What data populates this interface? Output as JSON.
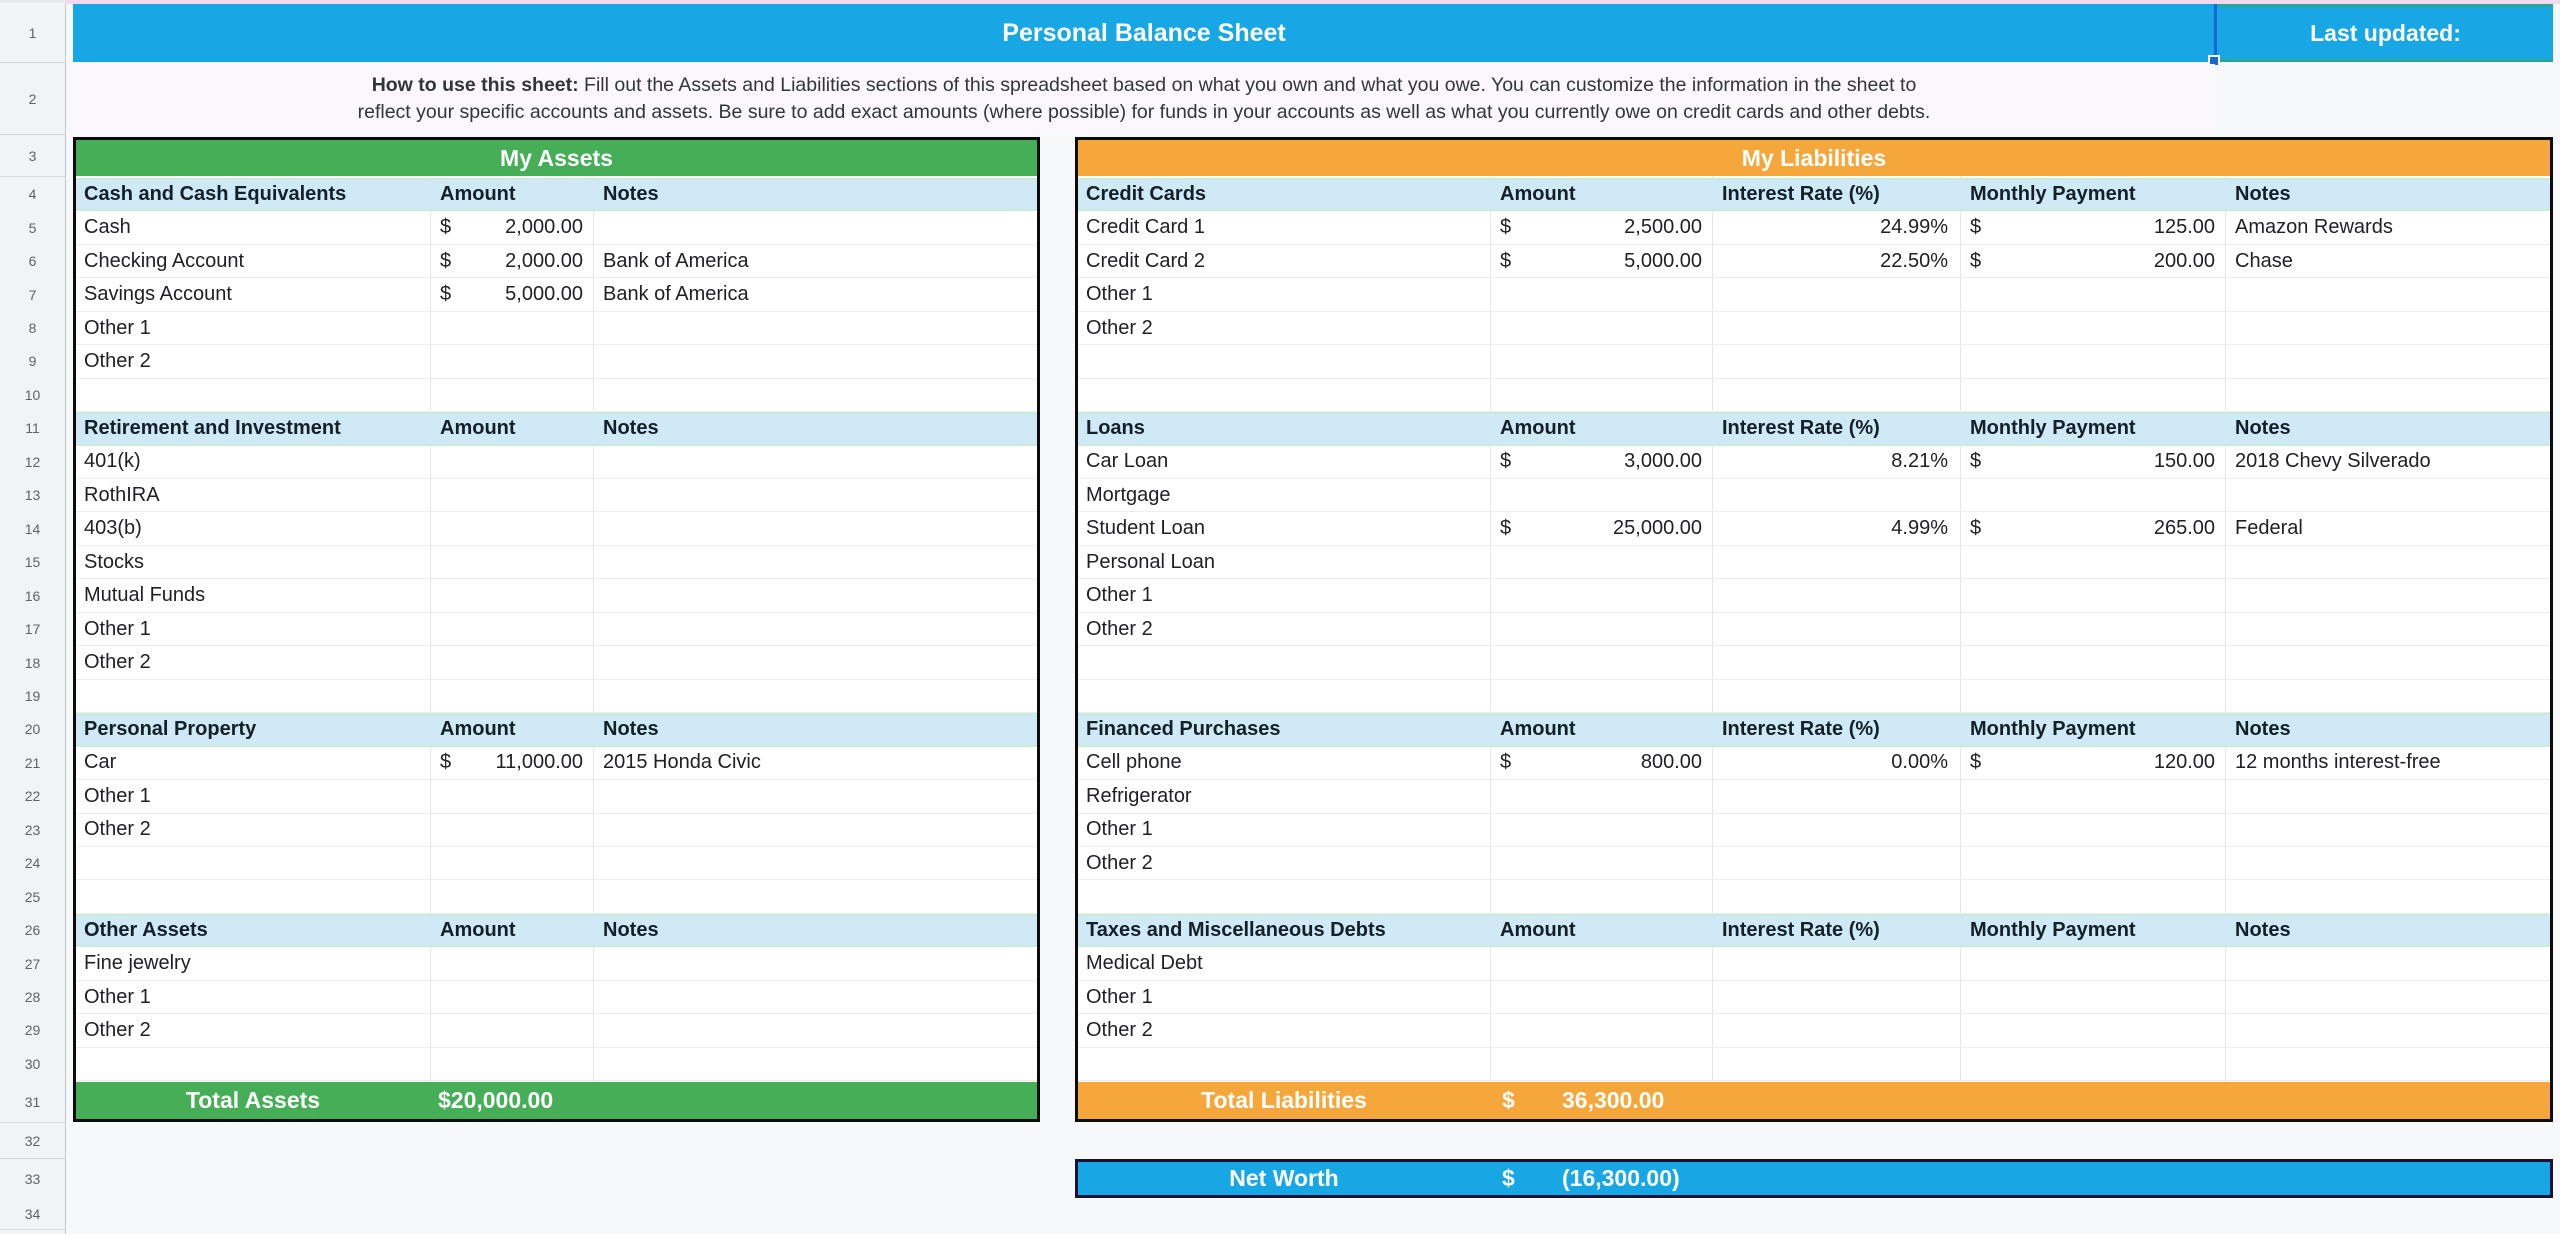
{
  "title_bar": {
    "title": "Personal Balance Sheet",
    "last_updated_label": "Last updated:"
  },
  "instructions": {
    "bold_prefix": "How to use this sheet:",
    "line1_rest": " Fill out the Assets and Liabilities sections of this spreadsheet based on what you own and what you owe. You can customize the information in the sheet to",
    "line2": "reflect your specific accounts and assets. Be sure to add exact amounts (where possible) for funds in your accounts as well as what you currently owe on credit cards and other debts."
  },
  "sheet": {
    "row_count": 34
  },
  "assets": {
    "banner": "My Assets",
    "column_labels": {
      "amount": "Amount",
      "notes": "Notes"
    },
    "rows": [
      {
        "r": 4,
        "type": "header",
        "label": "Cash and Cash Equivalents"
      },
      {
        "r": 5,
        "type": "item",
        "label": "Cash",
        "amount": "2,000.00",
        "notes": ""
      },
      {
        "r": 6,
        "type": "item",
        "label": "Checking Account",
        "amount": "2,000.00",
        "notes": "Bank of America"
      },
      {
        "r": 7,
        "type": "item",
        "label": "Savings Account",
        "amount": "5,000.00",
        "notes": "Bank of America"
      },
      {
        "r": 8,
        "type": "item",
        "label": "Other 1"
      },
      {
        "r": 9,
        "type": "item",
        "label": "Other 2"
      },
      {
        "r": 10,
        "type": "blank"
      },
      {
        "r": 11,
        "type": "header",
        "label": "Retirement and Investment"
      },
      {
        "r": 12,
        "type": "item",
        "label": "401(k)"
      },
      {
        "r": 13,
        "type": "item",
        "label": "RothIRA"
      },
      {
        "r": 14,
        "type": "item",
        "label": "403(b)"
      },
      {
        "r": 15,
        "type": "item",
        "label": "Stocks"
      },
      {
        "r": 16,
        "type": "item",
        "label": "Mutual Funds"
      },
      {
        "r": 17,
        "type": "item",
        "label": "Other 1"
      },
      {
        "r": 18,
        "type": "item",
        "label": "Other 2"
      },
      {
        "r": 19,
        "type": "blank"
      },
      {
        "r": 20,
        "type": "header",
        "label": "Personal Property"
      },
      {
        "r": 21,
        "type": "item",
        "label": "Car",
        "amount": "11,000.00",
        "notes": "2015 Honda Civic"
      },
      {
        "r": 22,
        "type": "item",
        "label": "Other 1"
      },
      {
        "r": 23,
        "type": "item",
        "label": "Other 2"
      },
      {
        "r": 24,
        "type": "blank"
      },
      {
        "r": 25,
        "type": "blank"
      },
      {
        "r": 26,
        "type": "header",
        "label": "Other Assets"
      },
      {
        "r": 27,
        "type": "item",
        "label": "Fine jewelry"
      },
      {
        "r": 28,
        "type": "item",
        "label": "Other 1"
      },
      {
        "r": 29,
        "type": "item",
        "label": "Other 2"
      },
      {
        "r": 30,
        "type": "blank"
      }
    ],
    "total_label": "Total Assets",
    "total_value": "$20,000.00"
  },
  "liabilities": {
    "banner": "My Liabilities",
    "column_labels": {
      "amount": "Amount",
      "rate": "Interest Rate (%)",
      "payment": "Monthly Payment",
      "notes": "Notes"
    },
    "rows": [
      {
        "r": 4,
        "type": "header",
        "label": "Credit Cards"
      },
      {
        "r": 5,
        "type": "item",
        "label": "Credit Card 1",
        "amount": "2,500.00",
        "rate": "24.99%",
        "payment": "125.00",
        "notes": "Amazon Rewards"
      },
      {
        "r": 6,
        "type": "item",
        "label": "Credit Card 2",
        "amount": "5,000.00",
        "rate": "22.50%",
        "payment": "200.00",
        "notes": "Chase"
      },
      {
        "r": 7,
        "type": "item",
        "label": "Other 1"
      },
      {
        "r": 8,
        "type": "item",
        "label": "Other 2"
      },
      {
        "r": 9,
        "type": "blank"
      },
      {
        "r": 10,
        "type": "blank"
      },
      {
        "r": 11,
        "type": "header",
        "label": "Loans"
      },
      {
        "r": 12,
        "type": "item",
        "label": "Car Loan",
        "amount": "3,000.00",
        "rate": "8.21%",
        "payment": "150.00",
        "notes": "2018 Chevy Silverado"
      },
      {
        "r": 13,
        "type": "item",
        "label": "Mortgage"
      },
      {
        "r": 14,
        "type": "item",
        "label": "Student Loan",
        "amount": "25,000.00",
        "rate": "4.99%",
        "payment": "265.00",
        "notes": "Federal"
      },
      {
        "r": 15,
        "type": "item",
        "label": "Personal Loan"
      },
      {
        "r": 16,
        "type": "item",
        "label": "Other 1"
      },
      {
        "r": 17,
        "type": "item",
        "label": "Other 2"
      },
      {
        "r": 18,
        "type": "blank"
      },
      {
        "r": 19,
        "type": "blank"
      },
      {
        "r": 20,
        "type": "header",
        "label": "Financed Purchases"
      },
      {
        "r": 21,
        "type": "item",
        "label": "Cell phone",
        "amount": "800.00",
        "rate": "0.00%",
        "payment": "120.00",
        "notes": "12 months interest-free"
      },
      {
        "r": 22,
        "type": "item",
        "label": "Refrigerator"
      },
      {
        "r": 23,
        "type": "item",
        "label": "Other 1"
      },
      {
        "r": 24,
        "type": "item",
        "label": "Other 2"
      },
      {
        "r": 25,
        "type": "blank"
      },
      {
        "r": 26,
        "type": "header",
        "label": "Taxes and Miscellaneous Debts"
      },
      {
        "r": 27,
        "type": "item",
        "label": "Medical Debt"
      },
      {
        "r": 28,
        "type": "item",
        "label": "Other 1"
      },
      {
        "r": 29,
        "type": "item",
        "label": "Other 2"
      },
      {
        "r": 30,
        "type": "blank"
      }
    ],
    "total_label": "Total Liabilities",
    "total_currency": "$",
    "total_value": "36,300.00"
  },
  "net_worth": {
    "label": "Net Worth",
    "currency": "$",
    "value": "(16,300.00)"
  },
  "colors": {
    "title_blue": "#17a7e4",
    "assets_green": "#45ae57",
    "liabilities_orange": "#f6a73c",
    "section_header_blue": "#cfe9f7",
    "section_header_green_edge": "#c9ecd9",
    "last_updated_teal_border": "#2aa698",
    "selection_blue": "#1a67d2",
    "net_worth_border": "#191236"
  }
}
